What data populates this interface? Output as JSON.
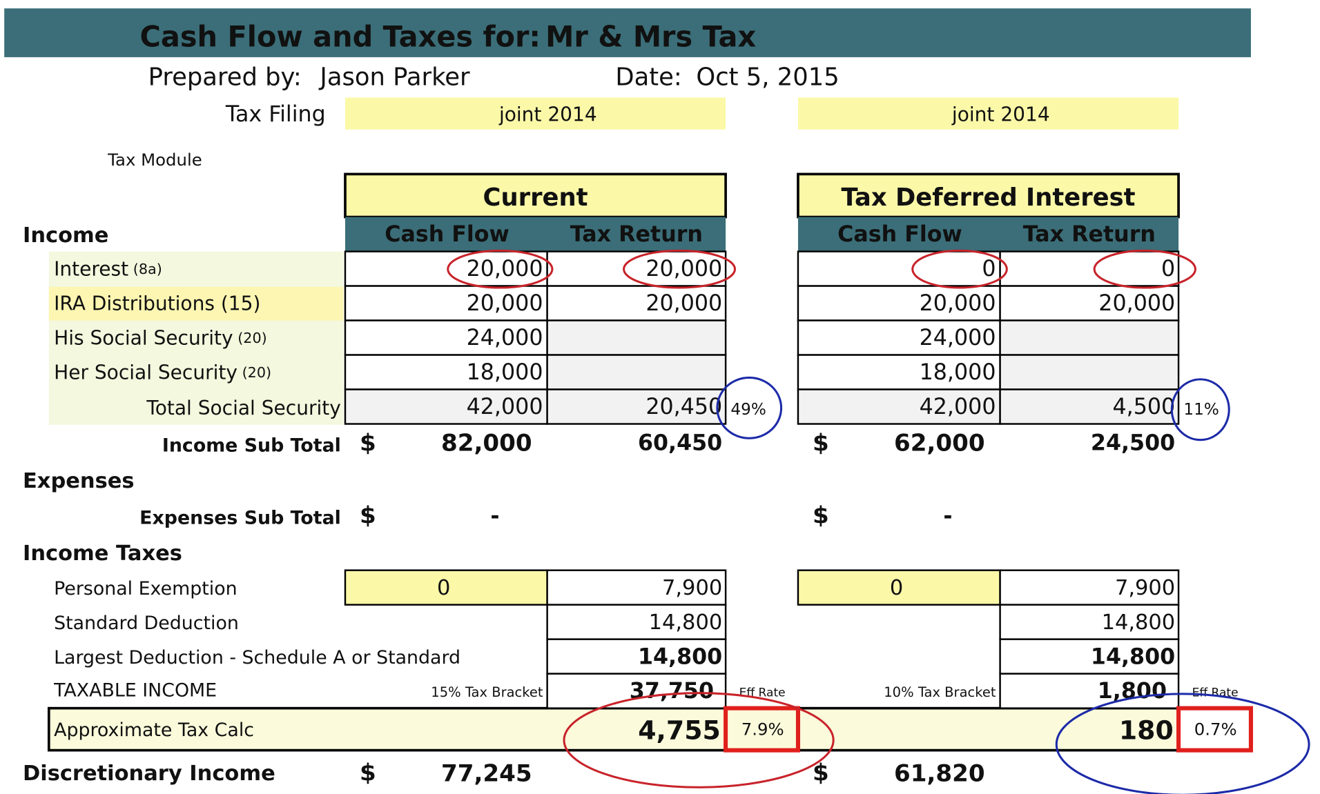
{
  "header": {
    "title": "Cash Flow and Taxes for:",
    "client": "Mr & Mrs Tax",
    "prepared_label": "Prepared by:",
    "preparer": "Jason Parker",
    "date_label": "Date:",
    "date": "Oct 5, 2015",
    "tax_filing_label": "Tax Filing",
    "module": "Tax Module"
  },
  "sections": {
    "income": "Income",
    "expenses": "Expenses",
    "income_taxes": "Income Taxes"
  },
  "labels": {
    "income_rows": [
      {
        "label": "Interest",
        "ref": "(8a)"
      },
      {
        "label": "IRA Distributions (15)"
      },
      {
        "label": "His Social Security",
        "ref": "(20)"
      },
      {
        "label": "Her Social Security",
        "ref": "(20)"
      },
      {
        "label": "Total Social Security"
      }
    ],
    "income_subtotal": "Income Sub Total",
    "expenses_subtotal": "Expenses Sub Total",
    "personal_exemption": "Personal Exemption",
    "standard_deduction": "Standard Deduction",
    "largest_deduction": "Largest Deduction - Schedule A or Standard",
    "taxable_income": "TAXABLE INCOME",
    "tax_calc": "Approximate Tax Calc",
    "discretionary": "Discretionary Income"
  },
  "scenarios": [
    {
      "filing": "joint 2014",
      "title": "Current",
      "columns": [
        "Cash Flow",
        "Tax Return"
      ],
      "income": [
        {
          "cf": "20,000",
          "tr": "20,000"
        },
        {
          "cf": "20,000",
          "tr": "20,000"
        },
        {
          "cf": "24,000"
        },
        {
          "cf": "18,000"
        },
        {
          "cf": "42,000",
          "tr": "20,450"
        }
      ],
      "ss_pct": "49%",
      "currency": "$",
      "income_subtotal": {
        "cf": "82,000",
        "tr": "60,450"
      },
      "expenses_subtotal": "-",
      "personal_exemption": {
        "cf": "0",
        "tr": "7,900"
      },
      "standard_deduction": "14,800",
      "largest_deduction": "14,800",
      "bracket": "15% Tax Bracket",
      "taxable_income": "37,750",
      "eff_rate_label": "Eff Rate",
      "tax_calc": "4,755",
      "eff_rate": "7.9%",
      "discretionary": "77,245"
    },
    {
      "filing": "joint 2014",
      "title": "Tax Deferred Interest",
      "columns": [
        "Cash Flow",
        "Tax Return"
      ],
      "income": [
        {
          "cf": "0",
          "tr": "0"
        },
        {
          "cf": "20,000",
          "tr": "20,000"
        },
        {
          "cf": "24,000"
        },
        {
          "cf": "18,000"
        },
        {
          "cf": "42,000",
          "tr": "4,500"
        }
      ],
      "ss_pct": "11%",
      "currency": "$",
      "income_subtotal": {
        "cf": "62,000",
        "tr": "24,500"
      },
      "expenses_subtotal": "-",
      "personal_exemption": {
        "cf": "0",
        "tr": "7,900"
      },
      "standard_deduction": "14,800",
      "largest_deduction": "14,800",
      "bracket": "10% Tax Bracket",
      "taxable_income": "1,800",
      "eff_rate_label": "Eff Rate",
      "tax_calc": "180",
      "eff_rate": "0.7%",
      "discretionary": "61,820"
    }
  ]
}
